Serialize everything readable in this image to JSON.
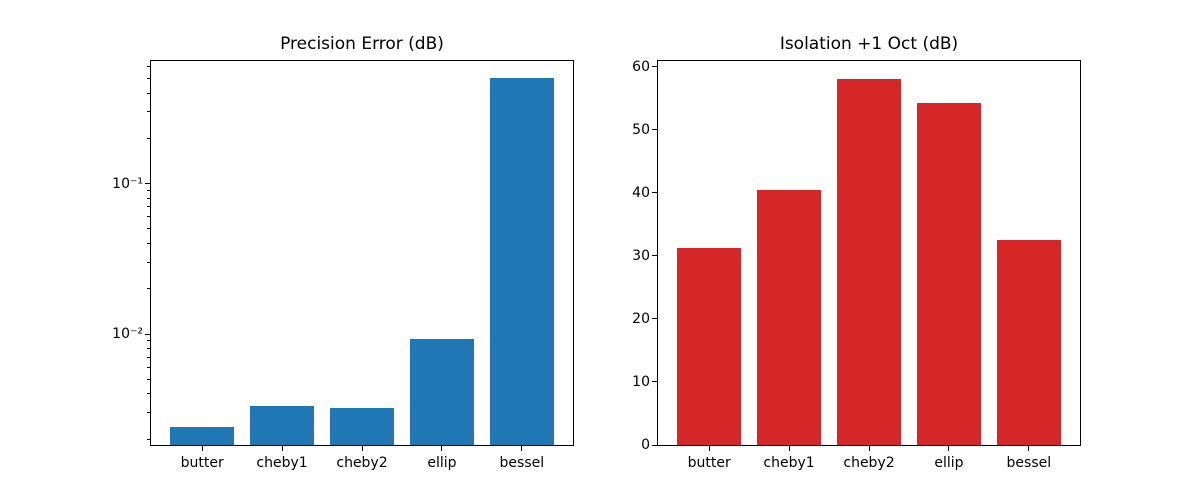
{
  "figure": {
    "background": "#ffffff"
  },
  "chart_data": [
    {
      "type": "bar",
      "title": "Precision Error (dB)",
      "categories": [
        "butter",
        "cheby1",
        "cheby2",
        "ellip",
        "bessel"
      ],
      "values": [
        0.0024,
        0.0033,
        0.0032,
        0.0092,
        0.5
      ],
      "bar_color": "#1f77b4",
      "bar_width": 0.8,
      "xlim": [
        -0.64,
        4.64
      ],
      "yscale": "log",
      "ylim": [
        0.00183,
        0.653
      ],
      "yticks": [
        {
          "value": 0.01,
          "label": "10⁻²"
        },
        {
          "value": 0.1,
          "label": "10⁻¹"
        }
      ],
      "minor_ticks": true,
      "grid": false,
      "legend": null,
      "xlabel": "",
      "ylabel": ""
    },
    {
      "type": "bar",
      "title": "Isolation +1 Oct (dB)",
      "categories": [
        "butter",
        "cheby1",
        "cheby2",
        "ellip",
        "bessel"
      ],
      "values": [
        31.3,
        40.5,
        58.0,
        54.3,
        32.5
      ],
      "bar_color": "#d62728",
      "bar_width": 0.8,
      "xlim": [
        -0.64,
        4.64
      ],
      "yscale": "linear",
      "ylim": [
        0,
        60.9
      ],
      "yticks": [
        {
          "value": 0,
          "label": "0"
        },
        {
          "value": 10,
          "label": "10"
        },
        {
          "value": 20,
          "label": "20"
        },
        {
          "value": 30,
          "label": "30"
        },
        {
          "value": 40,
          "label": "40"
        },
        {
          "value": 50,
          "label": "50"
        },
        {
          "value": 60,
          "label": "60"
        }
      ],
      "minor_ticks": false,
      "grid": false,
      "legend": null,
      "xlabel": "",
      "ylabel": ""
    }
  ]
}
